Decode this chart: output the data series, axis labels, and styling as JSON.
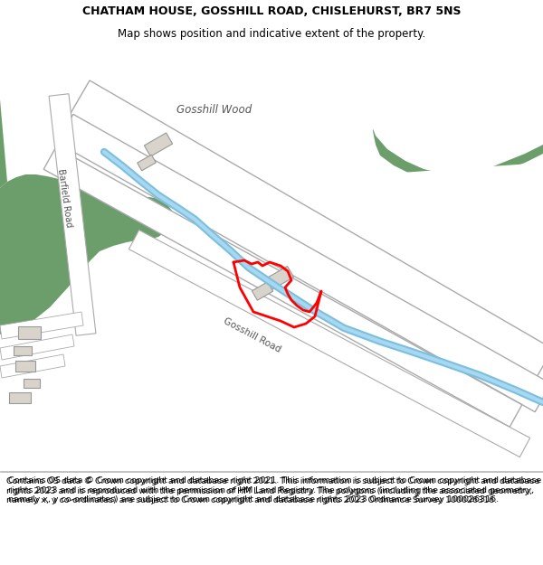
{
  "title_line1": "CHATHAM HOUSE, GOSSHILL ROAD, CHISLEHURST, BR7 5NS",
  "title_line2": "Map shows position and indicative extent of the property.",
  "footer_text": "Contains OS data © Crown copyright and database right 2021. This information is subject to Crown copyright and database rights 2023 and is reproduced with the permission of HM Land Registry. The polygons (including the associated geometry, namely x, y co-ordinates) are subject to Crown copyright and database rights 2023 Ordnance Survey 100026316.",
  "bg_color": "#ffffff",
  "map_bg": "#ffffff",
  "green_color": "#6b9e6b",
  "road_color": "#ffffff",
  "road_edge_color": "#b0b0b0",
  "river_color": "#7bbfe0",
  "property_color": "#ff0000",
  "header_bg": "#ffffff",
  "footer_bg": "#ffffff",
  "title_fontsize": 9.0,
  "subtitle_fontsize": 8.5,
  "footer_fontsize": 6.8,
  "label_gosshill_wood": "Gosshill Wood",
  "label_gosshill_road": "Gosshill Road",
  "label_barfield_road": "Barfield Road"
}
